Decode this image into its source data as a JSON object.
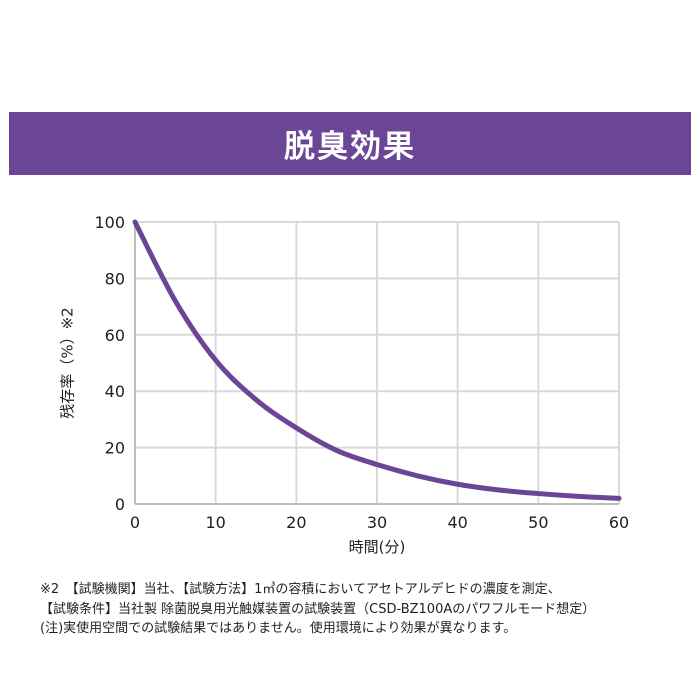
{
  "header": {
    "title": "脱臭効果"
  },
  "chart_data": {
    "type": "line",
    "title": "",
    "xlabel": "時間(分)",
    "ylabel": "残存率（%）※2",
    "xlim": [
      0,
      60
    ],
    "ylim": [
      0,
      100
    ],
    "x_ticks": [
      0,
      10,
      20,
      30,
      40,
      50,
      60
    ],
    "y_ticks": [
      0,
      20,
      40,
      60,
      80,
      100
    ],
    "grid": true,
    "series": [
      {
        "color": "#6b4596",
        "x": [
          0,
          5,
          10,
          15,
          20,
          25,
          30,
          35,
          40,
          45,
          50,
          55,
          60
        ],
        "y": [
          100,
          72,
          51,
          37,
          27,
          19,
          14,
          10,
          7,
          5,
          3.7,
          2.7,
          2
        ]
      }
    ]
  },
  "notes": [
    "※2　【試験機関】当社、【試験方法】1㎥の容積においてアセトアルデヒドの濃度を測定、",
    "【試験条件】当社製 除菌脱臭用光触媒装置の試験装置（CSD-BZ100Aのパワフルモード想定）",
    "(注)実使用空間での試験結果ではありません。使用環境により効果が異なります。"
  ]
}
